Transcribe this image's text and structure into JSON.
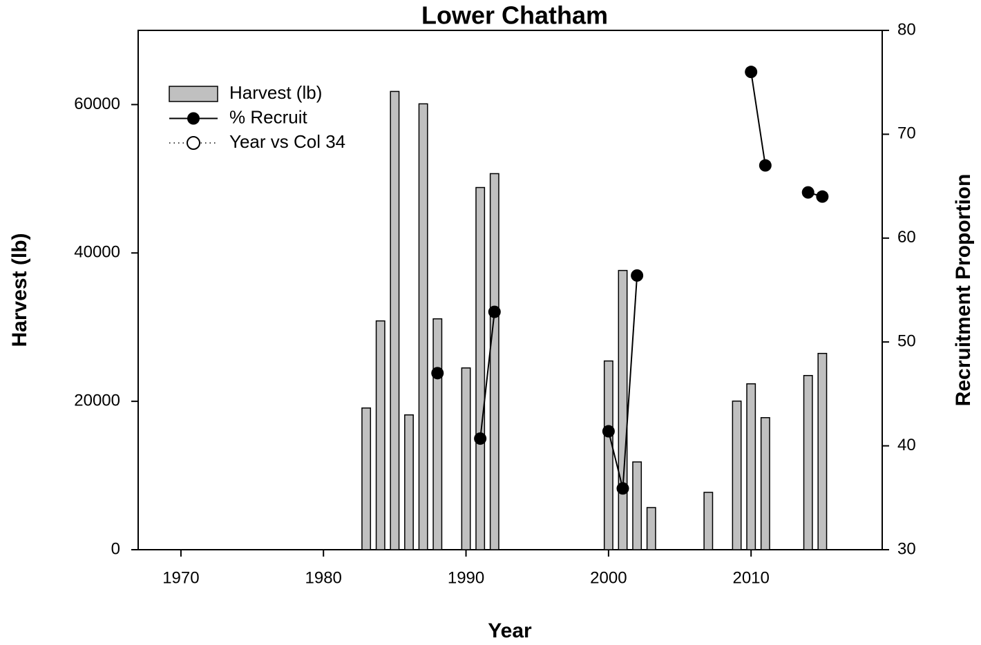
{
  "chart_data": {
    "type": "bar",
    "title": "Lower Chatham",
    "xlabel": "Year",
    "ylabel": "Harvest (lb)",
    "y2label": "Recruitment Proportion",
    "xlim": [
      1967,
      2019.2
    ],
    "xticks": [
      1970,
      1980,
      1990,
      2000,
      2010
    ],
    "ylim": [
      0,
      70000
    ],
    "yticks": [
      0,
      20000,
      40000,
      60000
    ],
    "y2lim": [
      30,
      80
    ],
    "y2ticks": [
      30,
      40,
      50,
      60,
      70,
      80
    ],
    "legend": "upper left",
    "series": [
      {
        "name": "Harvest (lb)",
        "type": "bar",
        "color": "#c0c0c0",
        "x": [
          1983,
          1984,
          1985,
          1986,
          1987,
          1988,
          1990,
          1991,
          1992,
          2000,
          2001,
          2002,
          2003,
          2007,
          2009,
          2010,
          2011,
          2014,
          2015
        ],
        "values": [
          19100,
          30840,
          61770,
          18170,
          60100,
          31120,
          24500,
          48820,
          50690,
          25440,
          37640,
          11830,
          5680,
          7730,
          20030,
          22360,
          17800,
          23480,
          26460
        ]
      },
      {
        "name": "% Recruit",
        "type": "line",
        "axis": "y2",
        "color": "#000000",
        "x": [
          1988,
          1989,
          1991,
          1992,
          1993,
          2000,
          2001,
          2002,
          2003,
          2010,
          2011,
          2012,
          2014,
          2015
        ],
        "values": [
          47.0,
          null,
          40.7,
          52.9,
          null,
          41.4,
          35.9,
          56.4,
          null,
          76.0,
          67.0,
          null,
          64.4,
          64.0
        ]
      },
      {
        "name": "Year vs Col 34",
        "type": "scatter",
        "axis": "y2",
        "color": "#000000",
        "x": [],
        "values": []
      }
    ]
  }
}
